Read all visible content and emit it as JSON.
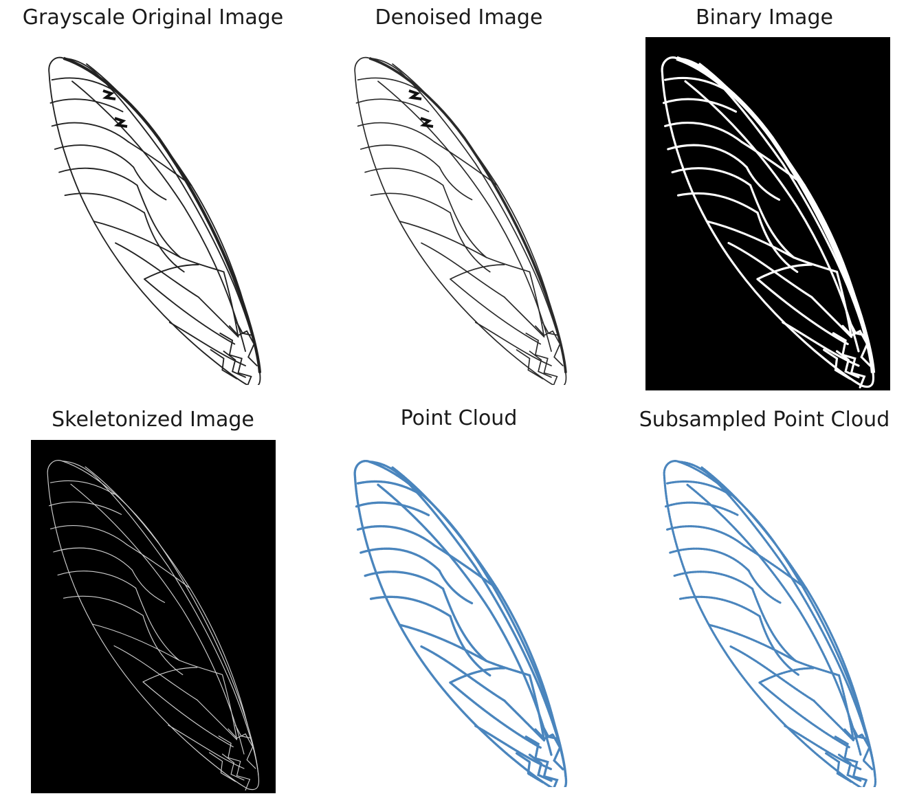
{
  "figure": {
    "panels": [
      {
        "id": "gray",
        "title": "Grayscale Original Image",
        "style": "gray"
      },
      {
        "id": "denoised",
        "title": "Denoised Image",
        "style": "denoised"
      },
      {
        "id": "binary",
        "title": "Binary Image",
        "style": "binary"
      },
      {
        "id": "skeleton",
        "title": "Skeletonized Image",
        "style": "skeleton"
      },
      {
        "id": "cloud",
        "title": "Point Cloud",
        "style": "cloud"
      },
      {
        "id": "subsampled",
        "title": "Subsampled Point Cloud",
        "style": "cloud"
      }
    ],
    "colors": {
      "background": "#ffffff",
      "vein_dark": "#222222",
      "binary_bg": "#000000",
      "binary_vein": "#ffffff",
      "skeleton_vein": "#cfcfcf",
      "point_cloud": "#4a85bd"
    }
  }
}
